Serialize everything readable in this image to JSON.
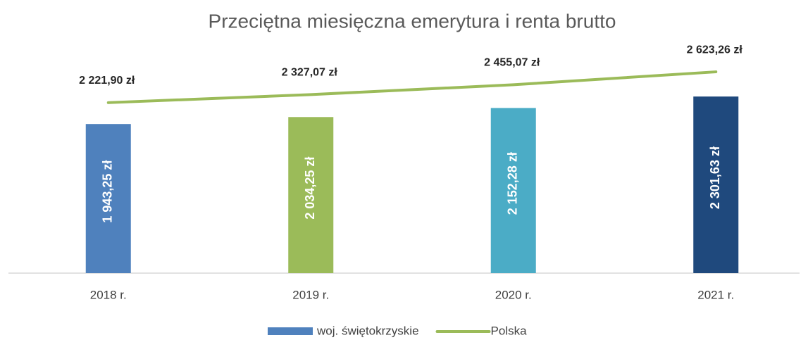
{
  "chart_data": {
    "type": "bar",
    "title": "Przeciętna miesięczna emerytura i renta brutto",
    "categories": [
      "2018 r.",
      "2019 r.",
      "2020 r.",
      "2021 r."
    ],
    "series": [
      {
        "name": "woj. świętokrzyskie",
        "type": "bar",
        "colors": [
          "#4f81bd",
          "#9bbb59",
          "#4bacc6",
          "#1f497d"
        ],
        "values": [
          1943.25,
          2034.25,
          2152.28,
          2301.63
        ],
        "value_labels": [
          "1 943,25 zł",
          "2 034,25 zł",
          "2 152,28 zł",
          "2 301,63 zł"
        ]
      },
      {
        "name": "Polska",
        "type": "line",
        "color": "#9bbb59",
        "values": [
          2221.9,
          2327.07,
          2455.07,
          2623.26
        ],
        "value_labels": [
          "2 221,90 zł",
          "2 327,07 zł",
          "2 455,07 zł",
          "2 623,26 zł"
        ]
      }
    ],
    "ylim": [
      0,
      3000
    ],
    "legend": "bottom"
  }
}
